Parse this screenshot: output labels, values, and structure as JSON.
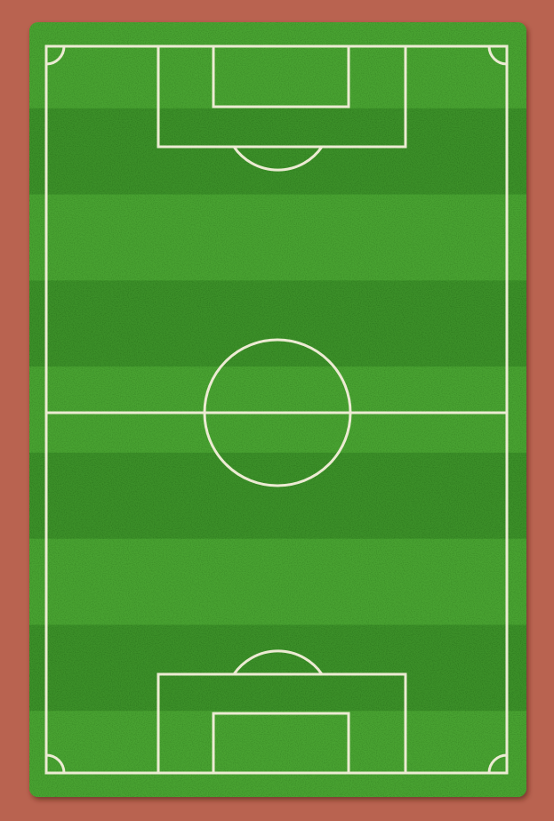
{
  "colors": {
    "background": "#b96350",
    "grass_light": "#49a332",
    "grass_dark": "#2d7a1f",
    "line": "#ecebd3",
    "shadow": "#7a3d2f"
  },
  "field": {
    "stripe_count": 9,
    "orientation": "vertical"
  }
}
